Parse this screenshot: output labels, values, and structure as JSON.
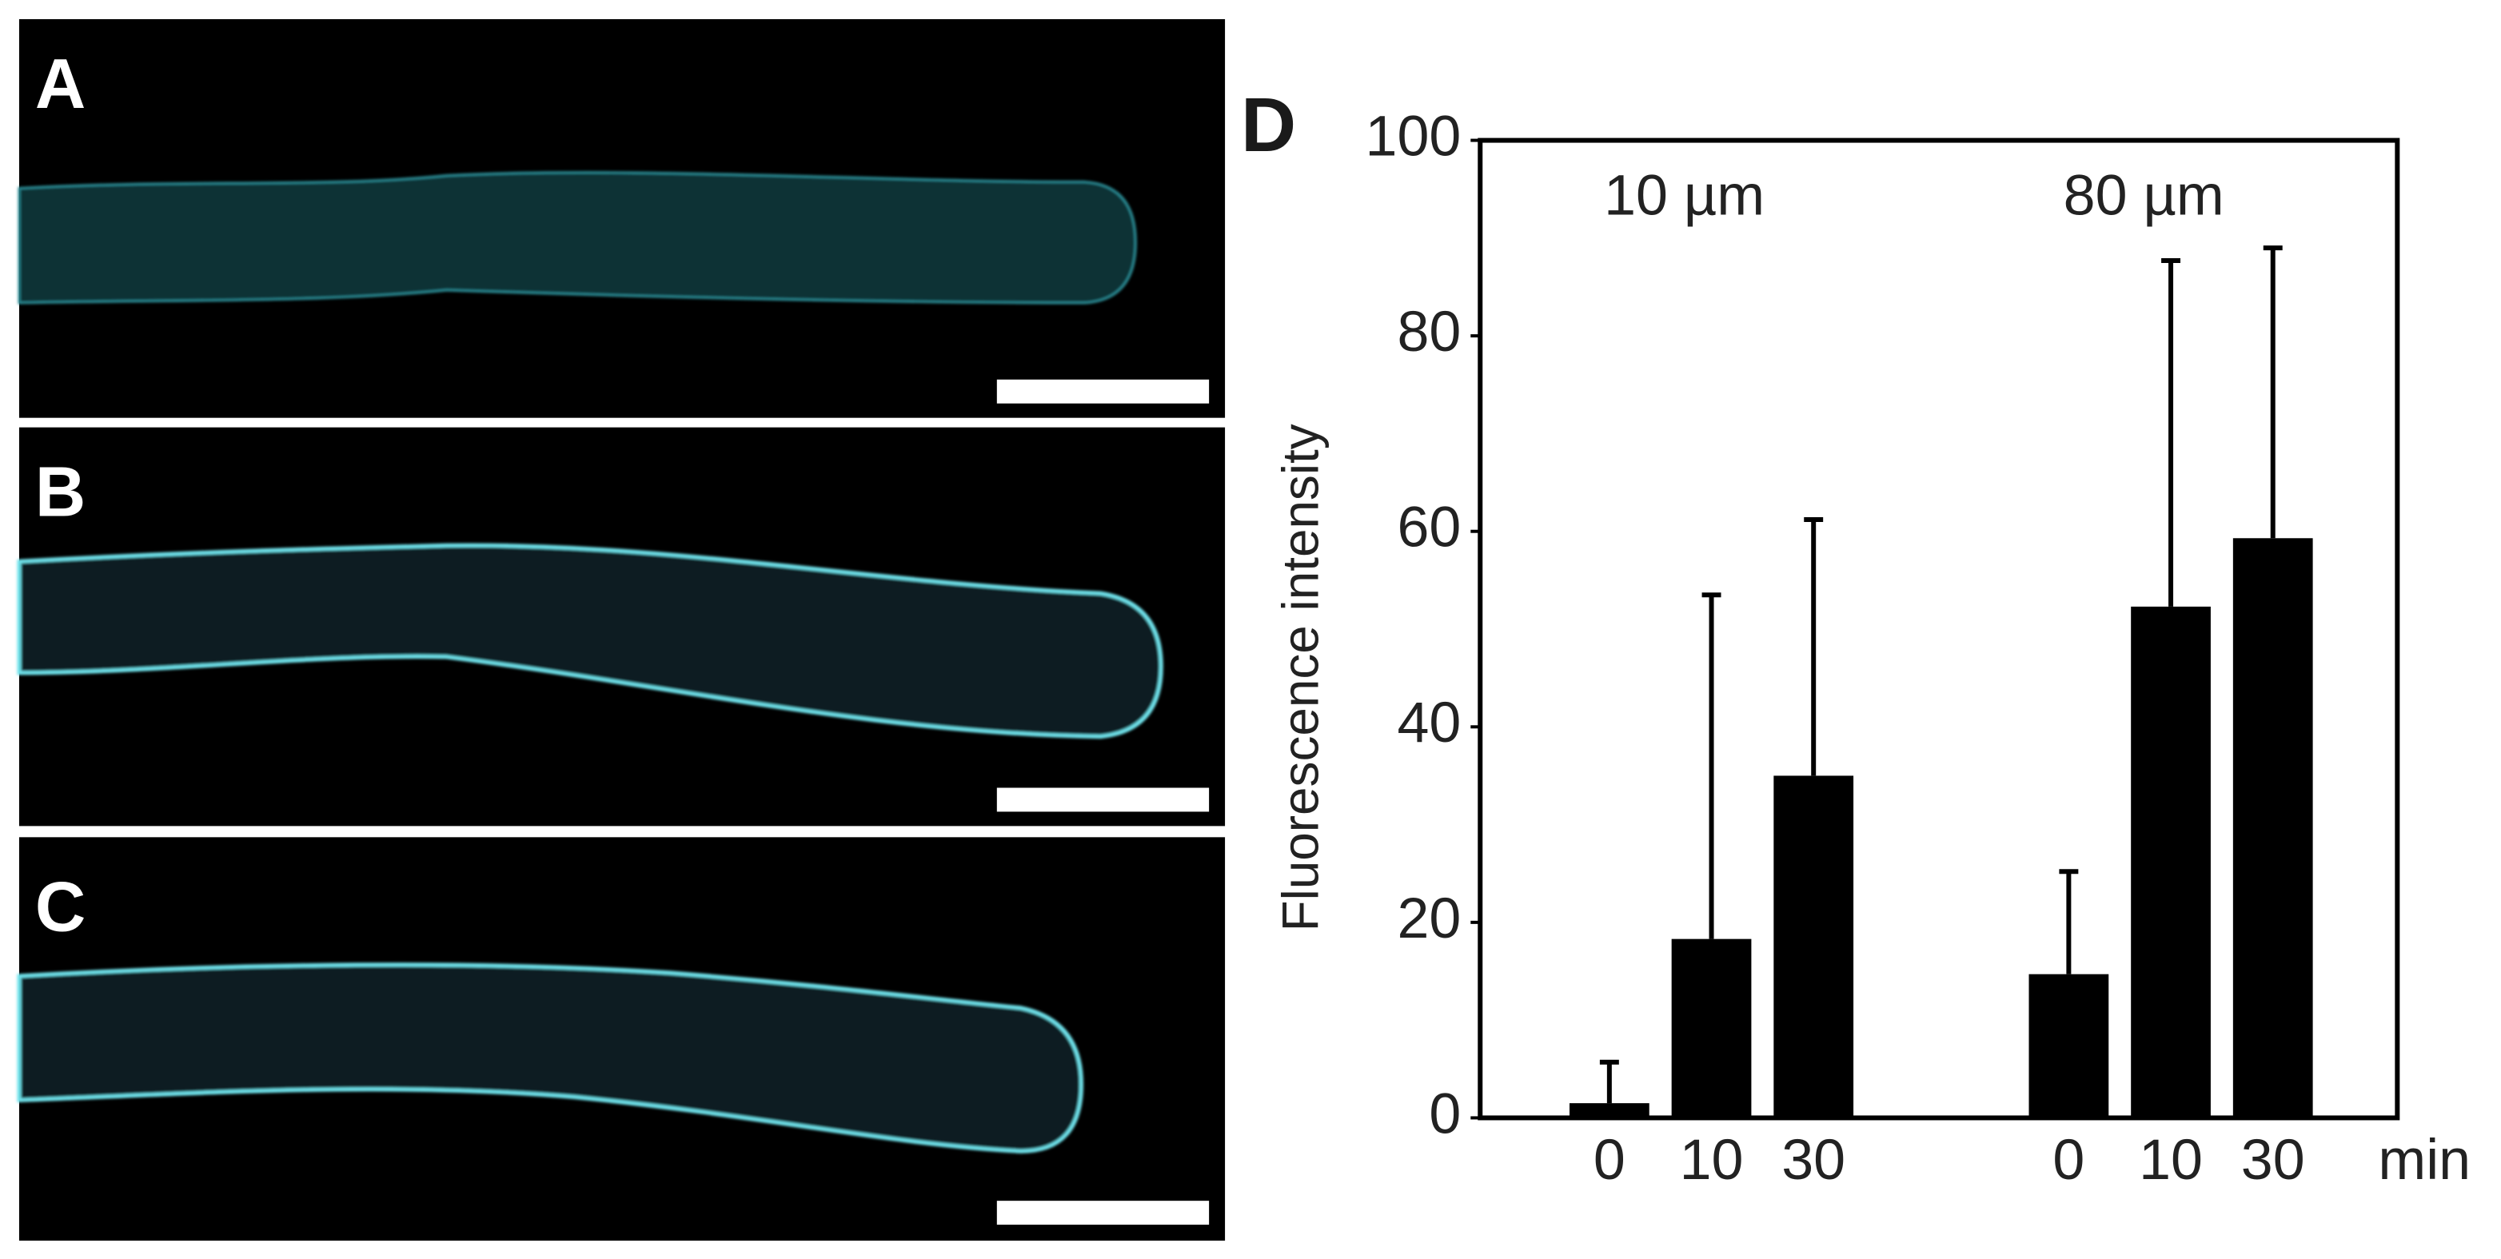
{
  "panels": [
    {
      "label": "A"
    },
    {
      "label": "B"
    },
    {
      "label": "C"
    }
  ],
  "chart_data": {
    "type": "bar",
    "panel_label": "D",
    "ylabel": "Fluorescence intensity",
    "xlabel": "min",
    "categories": [
      "0",
      "10",
      "30"
    ],
    "series": [
      {
        "name": "10 µm",
        "color": "#000000",
        "values": [
          1.5,
          18.3,
          35
        ],
        "errors": [
          4.2,
          35.2,
          26.2
        ]
      },
      {
        "name": "80 µm",
        "color": "#000000",
        "values": [
          14.7,
          52.3,
          59.3
        ],
        "errors": [
          10.5,
          35.4,
          29.7
        ]
      }
    ],
    "ylim": [
      0,
      100
    ],
    "yticks": [
      0,
      20,
      40,
      60,
      80,
      100
    ],
    "grid": false
  }
}
